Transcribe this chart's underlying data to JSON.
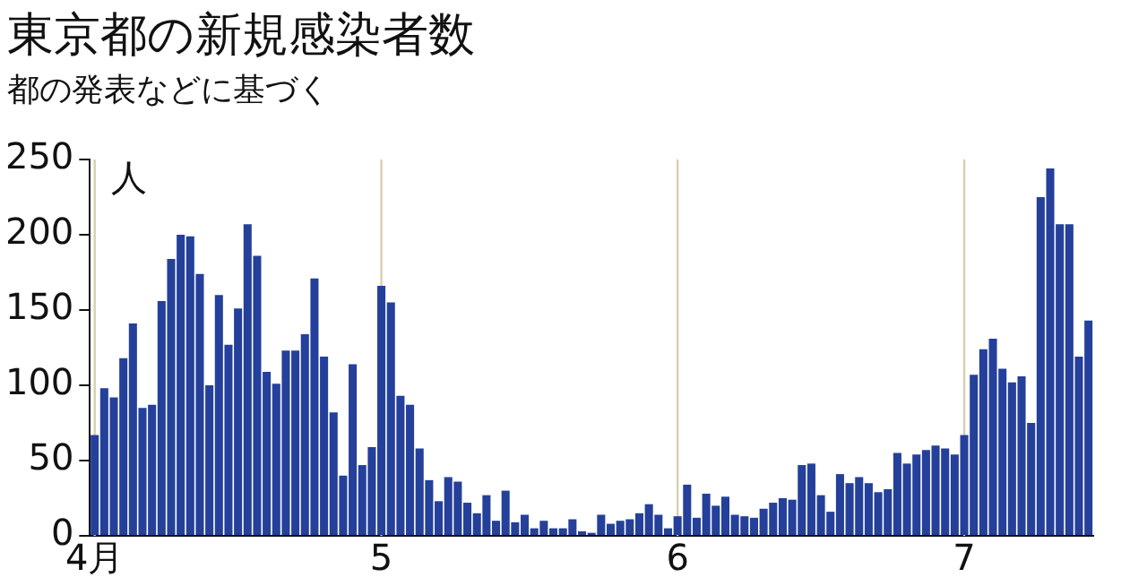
{
  "chart_data": {
    "type": "bar",
    "title": "東京都の新規感染者数",
    "subtitle": "都の発表などに基づく",
    "ylabel": "人",
    "categories": [
      "4月",
      null,
      null,
      null,
      null,
      null,
      null,
      null,
      null,
      null,
      null,
      null,
      null,
      null,
      null,
      null,
      null,
      null,
      null,
      null,
      null,
      null,
      null,
      null,
      null,
      null,
      null,
      null,
      null,
      null,
      "5",
      null,
      null,
      null,
      null,
      null,
      null,
      null,
      null,
      null,
      null,
      null,
      null,
      null,
      null,
      null,
      null,
      null,
      null,
      null,
      null,
      null,
      null,
      null,
      null,
      null,
      null,
      null,
      null,
      null,
      null,
      "6",
      null,
      null,
      null,
      null,
      null,
      null,
      null,
      null,
      null,
      null,
      null,
      null,
      null,
      null,
      null,
      null,
      null,
      null,
      null,
      null,
      null,
      null,
      null,
      null,
      null,
      null,
      null,
      null,
      null,
      "7",
      null,
      null,
      null,
      null,
      null,
      null,
      null,
      null,
      null,
      null,
      null,
      null,
      null
    ],
    "values": [
      67,
      98,
      92,
      118,
      141,
      85,
      87,
      156,
      184,
      200,
      199,
      174,
      100,
      160,
      127,
      151,
      207,
      186,
      109,
      101,
      123,
      123,
      134,
      171,
      119,
      82,
      40,
      114,
      47,
      59,
      166,
      155,
      93,
      87,
      58,
      37,
      23,
      39,
      36,
      22,
      15,
      27,
      10,
      30,
      9,
      14,
      5,
      10,
      5,
      5,
      11,
      3,
      2,
      14,
      8,
      10,
      11,
      15,
      21,
      14,
      5,
      13,
      34,
      12,
      28,
      20,
      26,
      14,
      13,
      12,
      18,
      22,
      25,
      24,
      47,
      48,
      27,
      16,
      41,
      35,
      39,
      35,
      29,
      31,
      55,
      48,
      54,
      57,
      60,
      58,
      54,
      67,
      107,
      124,
      131,
      111,
      102,
      106,
      75,
      225,
      244,
      207,
      207,
      119,
      143
    ],
    "color": "#24409a",
    "ylim": [
      0,
      250
    ],
    "yticks": [
      0,
      50,
      100,
      150,
      200,
      250
    ],
    "grid": false,
    "legend": false,
    "ref_lines": [
      {
        "axis": "x",
        "value": "4月",
        "color": "#d6cfb0"
      },
      {
        "axis": "x",
        "value": "5",
        "color": "#d6cfb0"
      },
      {
        "axis": "x",
        "value": "6",
        "color": "#d6cfb0"
      },
      {
        "axis": "x",
        "value": "7",
        "color": "#d6cfb0"
      }
    ]
  }
}
